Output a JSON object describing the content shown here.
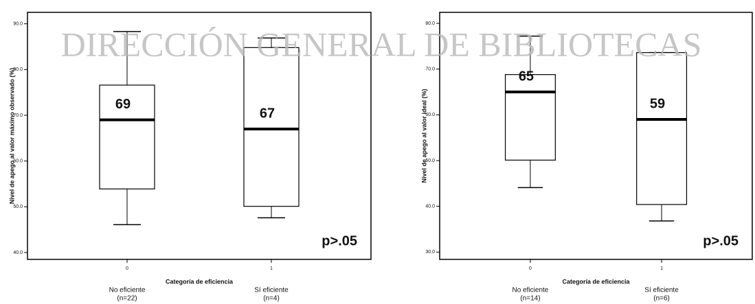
{
  "watermark": "DIRECCIÓN GENERAL DE BIBLIOTECAS",
  "chart_data": [
    {
      "type": "box",
      "ylabel": "Nivel de apego al valor máximo observado (%)",
      "xlabel": "Categoría de eficiencia",
      "categories": [
        "0",
        "1"
      ],
      "group_labels": [
        "No eficiente",
        "Sí eficiente"
      ],
      "group_sizes": [
        "(n=22)",
        "(n=4)"
      ],
      "whisker_low": [
        46.1,
        47.6
      ],
      "q1": [
        53.9,
        50.1
      ],
      "median": [
        69,
        67
      ],
      "q3": [
        76.6,
        84.8
      ],
      "whisker_high": [
        88.3,
        86.9
      ],
      "ylim": [
        38.5,
        92.5
      ],
      "yticks": [
        {
          "value": 40,
          "label": "40.0"
        },
        {
          "value": 50,
          "label": "50.0"
        },
        {
          "value": 60,
          "label": "60.0"
        },
        {
          "value": 70,
          "label": "70.0"
        },
        {
          "value": 80,
          "label": "80.0"
        },
        {
          "value": 90,
          "label": "90.0"
        }
      ],
      "annotation": "p>.05",
      "color": "#ffffff"
    },
    {
      "type": "box",
      "ylabel": "Nivel de apego al valor ideal (%)",
      "xlabel": "Categoría de eficiencia",
      "categories": [
        "0",
        "1"
      ],
      "group_labels": [
        "No eficiente",
        "Sí eficiente"
      ],
      "group_sizes": [
        "(n=14)",
        "(n=6)"
      ],
      "whisker_low": [
        44.1,
        36.8
      ],
      "q1": [
        50.1,
        40.4
      ],
      "median": [
        65,
        59
      ],
      "q3": [
        68.8,
        73.6
      ],
      "whisker_high": [
        77.2,
        73.6
      ],
      "ylim": [
        28.4,
        82.4
      ],
      "yticks": [
        {
          "value": 30,
          "label": "30.0"
        },
        {
          "value": 40,
          "label": "40.0"
        },
        {
          "value": 50,
          "label": "50.0"
        },
        {
          "value": 60,
          "label": "60.0"
        },
        {
          "value": 70,
          "label": "70.0"
        },
        {
          "value": 80,
          "label": "80.0"
        }
      ],
      "annotation": "p>.05",
      "color": "#ffffff"
    }
  ]
}
